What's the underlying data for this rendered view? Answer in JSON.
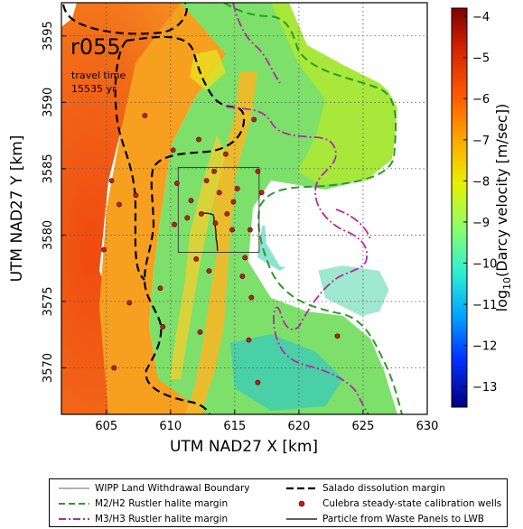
{
  "map": {
    "run_label": "r055",
    "travel_time_label": "travel time",
    "travel_time_value": "15535 yr",
    "x_axis": {
      "label": "UTM NAD27 X [km]",
      "range": [
        601.5,
        630
      ],
      "ticks": [
        "605",
        "610",
        "615",
        "620",
        "625",
        "630"
      ],
      "tick_values": [
        605,
        610,
        615,
        620,
        625,
        630
      ]
    },
    "y_axis": {
      "label": "UTM NAD27 Y [km]",
      "range": [
        3566.5,
        3597.5
      ],
      "ticks": [
        "3570",
        "3575",
        "3580",
        "3585",
        "3590",
        "3595"
      ],
      "tick_values": [
        3570,
        3575,
        3580,
        3585,
        3590,
        3595
      ]
    },
    "grid": true,
    "colorbar": {
      "label": "log10(Darcy velocity [m/sec])",
      "label_prefix": "log",
      "label_subscript": "10",
      "label_body": "(Darcy velocity [m/sec])",
      "range": [
        -13.5,
        -3.8
      ],
      "ticks": [
        "−4",
        "−5",
        "−6",
        "−7",
        "−8",
        "−9",
        "−10",
        "−11",
        "−12",
        "−13"
      ],
      "tick_values": [
        -4,
        -5,
        -6,
        -7,
        -8,
        -9,
        -10,
        -11,
        -12,
        -13
      ]
    },
    "wipp_boundary_km": {
      "x": [
        610.6,
        616.9
      ],
      "y": [
        3578.7,
        3585.1
      ]
    },
    "wells_km": [
      [
        608.0,
        3589.0
      ],
      [
        610.2,
        3586.4
      ],
      [
        612.2,
        3587.2
      ],
      [
        614.3,
        3586.1
      ],
      [
        616.5,
        3588.7
      ],
      [
        607.3,
        3583.0
      ],
      [
        606.0,
        3582.3
      ],
      [
        605.4,
        3584.1
      ],
      [
        610.5,
        3583.9
      ],
      [
        611.6,
        3582.6
      ],
      [
        612.8,
        3584.1
      ],
      [
        613.4,
        3584.8
      ],
      [
        613.8,
        3583.2
      ],
      [
        612.4,
        3581.6
      ],
      [
        611.3,
        3581.3
      ],
      [
        613.5,
        3580.9
      ],
      [
        614.4,
        3581.6
      ],
      [
        614.9,
        3582.5
      ],
      [
        615.2,
        3583.5
      ],
      [
        614.8,
        3580.4
      ],
      [
        616.8,
        3584.8
      ],
      [
        617.1,
        3583.2
      ],
      [
        616.2,
        3580.4
      ],
      [
        615.8,
        3578.3
      ],
      [
        612.0,
        3578.2
      ],
      [
        613.0,
        3577.3
      ],
      [
        615.6,
        3576.9
      ],
      [
        609.2,
        3576.0
      ],
      [
        616.3,
        3575.3
      ],
      [
        606.8,
        3574.9
      ],
      [
        604.8,
        3578.9
      ],
      [
        609.4,
        3573.1
      ],
      [
        612.3,
        3572.7
      ],
      [
        605.6,
        3570.0
      ],
      [
        616.1,
        3572.1
      ],
      [
        623.0,
        3572.4
      ],
      [
        616.8,
        3568.9
      ],
      [
        610.3,
        3580.8
      ]
    ],
    "colors": {
      "well": "#c0201e",
      "m2h2": "#2a9a2a",
      "m3h3": "#b22aa6",
      "salado": "#000000"
    }
  },
  "legend": {
    "wipp": "WIPP Land Withdrawal Boundary",
    "m2h2": "M2/H2 Rustler halite margin",
    "m3h3": "M3/H3 Rustler halite margin",
    "salado": "Salado dissolution margin",
    "wells": "Culebra steady-state calibration wells",
    "particle": "Particle from Waste Panels to LWB"
  }
}
